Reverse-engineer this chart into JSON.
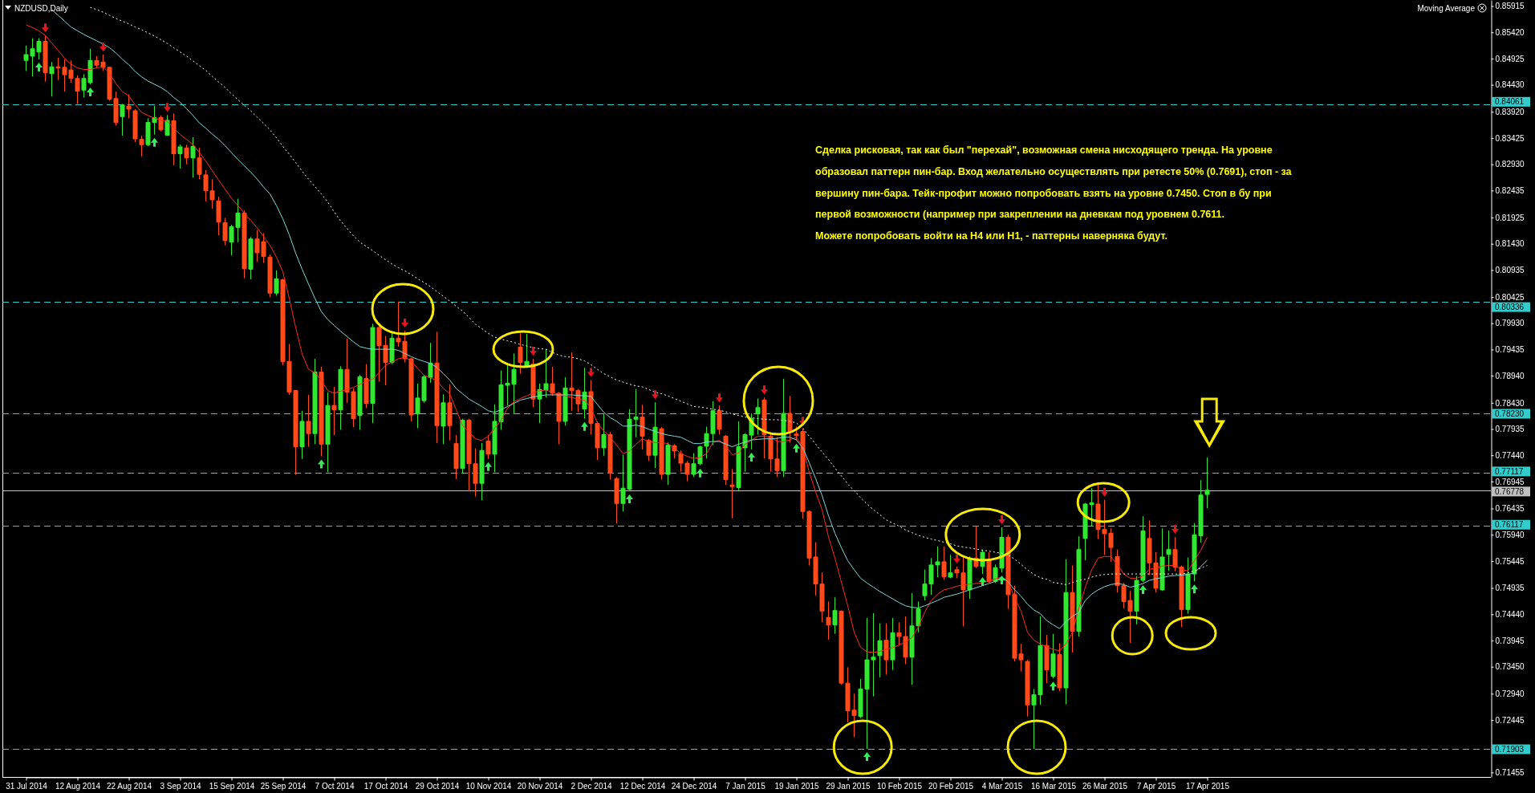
{
  "chart_data": {
    "type": "candlestick",
    "title": "NZDUSD,Daily",
    "categories": [
      "31 Jul 2014",
      null,
      null,
      null,
      null,
      null,
      null,
      null,
      "12 Aug 2014",
      null,
      null,
      null,
      null,
      null,
      null,
      null,
      "22 Aug 2014",
      null,
      null,
      null,
      null,
      null,
      null,
      null,
      "3 Sep 2014",
      null,
      null,
      null,
      null,
      null,
      null,
      null,
      "15 Sep 2014",
      null,
      null,
      null,
      null,
      null,
      null,
      null,
      "25 Sep 2014",
      null,
      null,
      null,
      null,
      null,
      null,
      null,
      "7 Oct 2014",
      null,
      null,
      null,
      null,
      null,
      null,
      null,
      "17 Oct 2014",
      null,
      null,
      null,
      null,
      null,
      null,
      null,
      "29 Oct 2014",
      null,
      null,
      null,
      null,
      null,
      null,
      null,
      "10 Nov 2014",
      null,
      null,
      null,
      null,
      null,
      null,
      null,
      "20 Nov 2014",
      null,
      null,
      null,
      null,
      null,
      null,
      null,
      "2 Dec 2014",
      null,
      null,
      null,
      null,
      null,
      null,
      null,
      "12 Dec 2014",
      null,
      null,
      null,
      null,
      null,
      null,
      null,
      "24 Dec 2014",
      null,
      null,
      null,
      null,
      null,
      null,
      null,
      "7 Jan 2015",
      null,
      null,
      null,
      null,
      null,
      null,
      null,
      "19 Jan 2015",
      null,
      null,
      null,
      null,
      null,
      null,
      null,
      "29 Jan 2015",
      null,
      null,
      null,
      null,
      null,
      null,
      null,
      "10 Feb 2015",
      null,
      null,
      null,
      null,
      null,
      null,
      null,
      "20 Feb 2015",
      null,
      null,
      null,
      null,
      null,
      null,
      null,
      "4 Mar 2015",
      null,
      null,
      null,
      null,
      null,
      null,
      null,
      "16 Mar 2015",
      null,
      null,
      null,
      null,
      null,
      null,
      null,
      "26 Mar 2015",
      null,
      null,
      null,
      null,
      null,
      null,
      null,
      "7 Apr 2015",
      null,
      null,
      null,
      null,
      null,
      null,
      null,
      "17 Apr 2015"
    ],
    "ohlc": [
      [
        0.8489,
        0.8517,
        0.8469,
        0.85
      ],
      [
        0.8497,
        0.8531,
        0.8459,
        0.8511
      ],
      [
        0.8505,
        0.8531,
        0.8491,
        0.8525
      ],
      [
        0.8525,
        0.8536,
        0.8449,
        0.8466
      ],
      [
        0.8464,
        0.8486,
        0.8421,
        0.8477
      ],
      [
        0.8477,
        0.8494,
        0.8452,
        0.8475
      ],
      [
        0.8476,
        0.8491,
        0.843,
        0.8462
      ],
      [
        0.8471,
        0.8489,
        0.8447,
        0.8455
      ],
      [
        0.8455,
        0.8461,
        0.8407,
        0.8431
      ],
      [
        0.8433,
        0.8463,
        0.8419,
        0.8455
      ],
      [
        0.8447,
        0.8511,
        0.8444,
        0.8489
      ],
      [
        0.8489,
        0.8497,
        0.8476,
        0.848
      ],
      [
        0.8486,
        0.85,
        0.8469,
        0.8476
      ],
      [
        0.8476,
        0.8477,
        0.8413,
        0.8416
      ],
      [
        0.8417,
        0.843,
        0.8366,
        0.8372
      ],
      [
        0.8383,
        0.8407,
        0.8347,
        0.8405
      ],
      [
        0.8403,
        0.8425,
        0.838,
        0.8397
      ],
      [
        0.8394,
        0.8397,
        0.8335,
        0.8341
      ],
      [
        0.834,
        0.8347,
        0.8308,
        0.833
      ],
      [
        0.833,
        0.838,
        0.8327,
        0.8372
      ],
      [
        0.8372,
        0.8403,
        0.8349,
        0.8381
      ],
      [
        0.8381,
        0.8385,
        0.8355,
        0.8358
      ],
      [
        0.8348,
        0.8386,
        0.8347,
        0.8376
      ],
      [
        0.8375,
        0.8389,
        0.8291,
        0.8313
      ],
      [
        0.8313,
        0.833,
        0.8285,
        0.8326
      ],
      [
        0.8324,
        0.833,
        0.8293,
        0.8305
      ],
      [
        0.8305,
        0.8344,
        0.8268,
        0.8327
      ],
      [
        0.8305,
        0.8324,
        0.8265,
        0.8274
      ],
      [
        0.8273,
        0.8282,
        0.8223,
        0.8243
      ],
      [
        0.8243,
        0.8265,
        0.8209,
        0.8226
      ],
      [
        0.8224,
        0.8232,
        0.8159,
        0.8184
      ],
      [
        0.8183,
        0.8192,
        0.814,
        0.8149
      ],
      [
        0.8146,
        0.8179,
        0.8121,
        0.8175
      ],
      [
        0.8174,
        0.8228,
        0.8146,
        0.8201
      ],
      [
        0.8201,
        0.8206,
        0.8078,
        0.8096
      ],
      [
        0.8095,
        0.8156,
        0.8076,
        0.8152
      ],
      [
        0.8152,
        0.8169,
        0.8109,
        0.8126
      ],
      [
        0.8147,
        0.8163,
        0.8107,
        0.8119
      ],
      [
        0.8118,
        0.8123,
        0.8042,
        0.805
      ],
      [
        0.805,
        0.8093,
        0.8045,
        0.8077
      ],
      [
        0.8075,
        0.8077,
        0.7914,
        0.7921
      ],
      [
        0.7921,
        0.7954,
        0.7858,
        0.7863
      ],
      [
        0.7866,
        0.7867,
        0.7707,
        0.776
      ],
      [
        0.776,
        0.7828,
        0.7737,
        0.7808
      ],
      [
        0.7808,
        0.7858,
        0.776,
        0.7785
      ],
      [
        0.7785,
        0.7926,
        0.7765,
        0.7901
      ],
      [
        0.7901,
        0.7911,
        0.7742,
        0.7765
      ],
      [
        0.7765,
        0.7863,
        0.7712,
        0.7838
      ],
      [
        0.7838,
        0.7873,
        0.7782,
        0.783
      ],
      [
        0.783,
        0.7912,
        0.7792,
        0.7906
      ],
      [
        0.7906,
        0.7964,
        0.7843,
        0.7863
      ],
      [
        0.7864,
        0.787,
        0.7797,
        0.7813
      ],
      [
        0.7819,
        0.7896,
        0.7792,
        0.7892
      ],
      [
        0.7889,
        0.7916,
        0.7833,
        0.7842
      ],
      [
        0.7842,
        0.7992,
        0.7805,
        0.7985
      ],
      [
        0.7985,
        0.7989,
        0.7883,
        0.7951
      ],
      [
        0.7951,
        0.7969,
        0.7876,
        0.7919
      ],
      [
        0.7919,
        0.7977,
        0.7916,
        0.7965
      ],
      [
        0.7965,
        0.8034,
        0.7949,
        0.7958
      ],
      [
        0.7959,
        0.7979,
        0.7919,
        0.7926
      ],
      [
        0.7926,
        0.7928,
        0.7808,
        0.782
      ],
      [
        0.7822,
        0.7879,
        0.7795,
        0.7852
      ],
      [
        0.7847,
        0.7896,
        0.7843,
        0.7892
      ],
      [
        0.7891,
        0.7956,
        0.7881,
        0.7918
      ],
      [
        0.7918,
        0.7977,
        0.7767,
        0.78
      ],
      [
        0.7799,
        0.7859,
        0.7765,
        0.7843
      ],
      [
        0.7843,
        0.7878,
        0.7772,
        0.78
      ],
      [
        0.7766,
        0.7782,
        0.7699,
        0.7719
      ],
      [
        0.7719,
        0.7813,
        0.7709,
        0.781
      ],
      [
        0.781,
        0.7813,
        0.7676,
        0.7728
      ],
      [
        0.7728,
        0.7757,
        0.7666,
        0.7691
      ],
      [
        0.7691,
        0.7767,
        0.7659,
        0.7753
      ],
      [
        0.7771,
        0.7782,
        0.7737,
        0.7746
      ],
      [
        0.7746,
        0.784,
        0.7712,
        0.7808
      ],
      [
        0.7807,
        0.7904,
        0.7792,
        0.7877
      ],
      [
        0.7876,
        0.7918,
        0.7838,
        0.788
      ],
      [
        0.7878,
        0.7936,
        0.7823,
        0.7906
      ],
      [
        0.7948,
        0.7974,
        0.7898,
        0.7919
      ],
      [
        0.791,
        0.7973,
        0.7909,
        0.7921
      ],
      [
        0.7916,
        0.7926,
        0.7835,
        0.785
      ],
      [
        0.785,
        0.7879,
        0.7805,
        0.7868
      ],
      [
        0.7867,
        0.7944,
        0.7853,
        0.7879
      ],
      [
        0.7879,
        0.7911,
        0.7856,
        0.7861
      ],
      [
        0.7861,
        0.7863,
        0.7765,
        0.7808
      ],
      [
        0.7808,
        0.7891,
        0.78,
        0.7871
      ],
      [
        0.7871,
        0.7938,
        0.7828,
        0.7866
      ],
      [
        0.7866,
        0.7869,
        0.7826,
        0.7841
      ],
      [
        0.7831,
        0.7909,
        0.7813,
        0.7863
      ],
      [
        0.7864,
        0.7886,
        0.7783,
        0.7804
      ],
      [
        0.7804,
        0.7808,
        0.7735,
        0.7758
      ],
      [
        0.7758,
        0.7823,
        0.7743,
        0.7783
      ],
      [
        0.7783,
        0.7788,
        0.7698,
        0.771
      ],
      [
        0.77,
        0.7703,
        0.7615,
        0.7653
      ],
      [
        0.7653,
        0.7745,
        0.7638,
        0.7682
      ],
      [
        0.768,
        0.7831,
        0.7676,
        0.7812
      ],
      [
        0.7812,
        0.7869,
        0.7778,
        0.7816
      ],
      [
        0.7816,
        0.7839,
        0.7755,
        0.778
      ],
      [
        0.7772,
        0.7775,
        0.7733,
        0.7744
      ],
      [
        0.7744,
        0.7844,
        0.772,
        0.7797
      ],
      [
        0.7794,
        0.7797,
        0.7698,
        0.7708
      ],
      [
        0.7708,
        0.7768,
        0.7688,
        0.7763
      ],
      [
        0.7762,
        0.7765,
        0.7738,
        0.7752
      ],
      [
        0.7747,
        0.7753,
        0.7713,
        0.7729
      ],
      [
        0.7729,
        0.7733,
        0.7695,
        0.7708
      ],
      [
        0.7708,
        0.7748,
        0.7703,
        0.7728
      ],
      [
        0.7728,
        0.7762,
        0.7725,
        0.776
      ],
      [
        0.7761,
        0.7798,
        0.7738,
        0.7785
      ],
      [
        0.7785,
        0.7846,
        0.7763,
        0.7828
      ],
      [
        0.7828,
        0.7838,
        0.7783,
        0.7793
      ],
      [
        0.778,
        0.7782,
        0.7688,
        0.7698
      ],
      [
        0.7688,
        0.7718,
        0.7625,
        0.7685
      ],
      [
        0.7683,
        0.7808,
        0.7678,
        0.776
      ],
      [
        0.7758,
        0.7785,
        0.7713,
        0.7783
      ],
      [
        0.7782,
        0.7823,
        0.7755,
        0.7813
      ],
      [
        0.7822,
        0.7851,
        0.7783,
        0.7834
      ],
      [
        0.7848,
        0.7853,
        0.7738,
        0.7783
      ],
      [
        0.778,
        0.7785,
        0.7713,
        0.7737
      ],
      [
        0.7737,
        0.7778,
        0.7703,
        0.7715
      ],
      [
        0.7715,
        0.7888,
        0.7703,
        0.7823
      ],
      [
        0.7823,
        0.7856,
        0.7768,
        0.7789
      ],
      [
        0.7784,
        0.7798,
        0.7772,
        0.7781
      ],
      [
        0.7789,
        0.7794,
        0.7624,
        0.7638
      ],
      [
        0.7638,
        0.764,
        0.7536,
        0.755
      ],
      [
        0.7552,
        0.758,
        0.7479,
        0.7501
      ],
      [
        0.7501,
        0.7523,
        0.7429,
        0.745
      ],
      [
        0.7438,
        0.7468,
        0.7396,
        0.7424
      ],
      [
        0.7424,
        0.7476,
        0.7407,
        0.7451
      ],
      [
        0.745,
        0.7451,
        0.7311,
        0.7314
      ],
      [
        0.7314,
        0.7344,
        0.724,
        0.7262
      ],
      [
        0.7263,
        0.7294,
        0.7212,
        0.7253
      ],
      [
        0.7251,
        0.7322,
        0.7248,
        0.7303
      ],
      [
        0.7303,
        0.7437,
        0.719,
        0.7358
      ],
      [
        0.7358,
        0.7446,
        0.7289,
        0.7363
      ],
      [
        0.7366,
        0.7427,
        0.7325,
        0.7394
      ],
      [
        0.7395,
        0.7427,
        0.733,
        0.7358
      ],
      [
        0.7358,
        0.7437,
        0.7339,
        0.7409
      ],
      [
        0.7409,
        0.7429,
        0.7385,
        0.7402
      ],
      [
        0.7402,
        0.744,
        0.735,
        0.7363
      ],
      [
        0.7363,
        0.7484,
        0.7311,
        0.7422
      ],
      [
        0.7422,
        0.7468,
        0.741,
        0.7454
      ],
      [
        0.7479,
        0.7528,
        0.747,
        0.7501
      ],
      [
        0.7501,
        0.755,
        0.7481,
        0.7537
      ],
      [
        0.7537,
        0.7572,
        0.7514,
        0.7543
      ],
      [
        0.7543,
        0.7572,
        0.7509,
        0.7515
      ],
      [
        0.7514,
        0.7556,
        0.7512,
        0.7522
      ],
      [
        0.7528,
        0.7534,
        0.7512,
        0.7522
      ],
      [
        0.7522,
        0.7553,
        0.7421,
        0.749
      ],
      [
        0.749,
        0.7553,
        0.7473,
        0.755
      ],
      [
        0.755,
        0.761,
        0.7531,
        0.7534
      ],
      [
        0.7534,
        0.7566,
        0.752,
        0.7561
      ],
      [
        0.7547,
        0.7561,
        0.7503,
        0.7506
      ],
      [
        0.7506,
        0.7538,
        0.7503,
        0.7532
      ],
      [
        0.7531,
        0.7608,
        0.7523,
        0.7589
      ],
      [
        0.7589,
        0.7594,
        0.7454,
        0.7481
      ],
      [
        0.7481,
        0.7498,
        0.7355,
        0.7361
      ],
      [
        0.7369,
        0.7388,
        0.7336,
        0.7358
      ],
      [
        0.7355,
        0.7358,
        0.7251,
        0.7273
      ],
      [
        0.7273,
        0.7303,
        0.719,
        0.7292
      ],
      [
        0.7292,
        0.744,
        0.7273,
        0.7385
      ],
      [
        0.7385,
        0.7405,
        0.7314,
        0.7339
      ],
      [
        0.7327,
        0.7407,
        0.7323,
        0.7369
      ],
      [
        0.7368,
        0.7389,
        0.7299,
        0.7305
      ],
      [
        0.7305,
        0.7548,
        0.7274,
        0.7485
      ],
      [
        0.7485,
        0.7536,
        0.7372,
        0.7412
      ],
      [
        0.7412,
        0.7591,
        0.7402,
        0.7566
      ],
      [
        0.7587,
        0.7654,
        0.7546,
        0.7652
      ],
      [
        0.7651,
        0.7682,
        0.7611,
        0.7654
      ],
      [
        0.7652,
        0.7689,
        0.7586,
        0.7604
      ],
      [
        0.7604,
        0.766,
        0.7556,
        0.7596
      ],
      [
        0.7597,
        0.7606,
        0.7543,
        0.757
      ],
      [
        0.7553,
        0.7566,
        0.7485,
        0.7498
      ],
      [
        0.7498,
        0.7503,
        0.7455,
        0.7468
      ],
      [
        0.747,
        0.7488,
        0.739,
        0.745
      ],
      [
        0.745,
        0.7516,
        0.7425,
        0.7508
      ],
      [
        0.7508,
        0.7629,
        0.7505,
        0.7601
      ],
      [
        0.7587,
        0.7621,
        0.7518,
        0.7541
      ],
      [
        0.7541,
        0.7561,
        0.7485,
        0.7493
      ],
      [
        0.749,
        0.7606,
        0.7488,
        0.7552
      ],
      [
        0.7557,
        0.7602,
        0.7526,
        0.7566
      ],
      [
        0.7566,
        0.759,
        0.7525,
        0.7533
      ],
      [
        0.7533,
        0.7536,
        0.742,
        0.7453
      ],
      [
        0.7453,
        0.7551,
        0.7445,
        0.752
      ],
      [
        0.752,
        0.7616,
        0.7506,
        0.7594
      ],
      [
        0.7592,
        0.7697,
        0.7579,
        0.7669
      ],
      [
        0.767,
        0.774,
        0.7644,
        0.7678
      ]
    ],
    "colors": [
      "#33e633",
      "#33e633",
      "#33e633",
      "#ff4a1c",
      "#33e633",
      "#ff4a1c",
      "#ff4a1c",
      "#ff4a1c",
      "#ff4a1c",
      "#33e633",
      "#33e633",
      "#ff4a1c",
      "#ff4a1c",
      "#ff4a1c",
      "#ff4a1c",
      "#33e633",
      "#ff4a1c",
      "#ff4a1c",
      "#ff4a1c",
      "#33e633",
      "#33e633",
      "#ff4a1c",
      "#33e633",
      "#ff4a1c",
      "#33e633",
      "#ff4a1c",
      "#33e633",
      "#ff4a1c",
      "#ff4a1c",
      "#ff4a1c",
      "#ff4a1c",
      "#ff4a1c",
      "#33e633",
      "#33e633",
      "#ff4a1c",
      "#33e633",
      "#ff4a1c",
      "#ff4a1c",
      "#ff4a1c",
      "#33e633",
      "#ff4a1c",
      "#ff4a1c",
      "#ff4a1c",
      "#33e633",
      "#ff4a1c",
      "#33e633",
      "#ff4a1c",
      "#33e633",
      "#ff4a1c",
      "#33e633",
      "#ff4a1c",
      "#ff4a1c",
      "#33e633",
      "#ff4a1c",
      "#33e633",
      "#ff4a1c",
      "#ff4a1c",
      "#33e633",
      "#ff4a1c",
      "#ff4a1c",
      "#ff4a1c",
      "#33e633",
      "#33e633",
      "#33e633",
      "#ff4a1c",
      "#33e633",
      "#ff4a1c",
      "#ff4a1c",
      "#33e633",
      "#ff4a1c",
      "#ff4a1c",
      "#33e633",
      "#ff4a1c",
      "#33e633",
      "#33e633",
      "#33e633",
      "#33e633",
      "#ff4a1c",
      "#33e633",
      "#ff4a1c",
      "#33e633",
      "#33e633",
      "#ff4a1c",
      "#ff4a1c",
      "#33e633",
      "#ff4a1c",
      "#ff4a1c",
      "#33e633",
      "#ff4a1c",
      "#ff4a1c",
      "#33e633",
      "#ff4a1c",
      "#ff4a1c",
      "#33e633",
      "#33e633",
      "#33e633",
      "#ff4a1c",
      "#ff4a1c",
      "#33e633",
      "#ff4a1c",
      "#33e633",
      "#ff4a1c",
      "#ff4a1c",
      "#ff4a1c",
      "#33e633",
      "#33e633",
      "#33e633",
      "#33e633",
      "#ff4a1c",
      "#ff4a1c",
      "#ff4a1c",
      "#33e633",
      "#33e633",
      "#33e633",
      "#33e633",
      "#ff4a1c",
      "#ff4a1c",
      "#ff4a1c",
      "#33e633",
      "#ff4a1c",
      "#ff4a1c",
      "#ff4a1c",
      "#ff4a1c",
      "#ff4a1c",
      "#ff4a1c",
      "#ff4a1c",
      "#33e633",
      "#ff4a1c",
      "#ff4a1c",
      "#ff4a1c",
      "#33e633",
      "#33e633",
      "#33e633",
      "#33e633",
      "#ff4a1c",
      "#33e633",
      "#ff4a1c",
      "#ff4a1c",
      "#33e633",
      "#33e633",
      "#33e633",
      "#33e633",
      "#33e633",
      "#ff4a1c",
      "#33e633",
      "#ff4a1c",
      "#ff4a1c",
      "#33e633",
      "#ff4a1c",
      "#33e633",
      "#ff4a1c",
      "#33e633",
      "#33e633",
      "#ff4a1c",
      "#ff4a1c",
      "#ff4a1c",
      "#ff4a1c",
      "#33e633",
      "#33e633",
      "#ff4a1c",
      "#33e633",
      "#ff4a1c",
      "#33e633",
      "#ff4a1c",
      "#33e633",
      "#33e633",
      "#33e633",
      "#ff4a1c",
      "#ff4a1c",
      "#ff4a1c",
      "#ff4a1c",
      "#ff4a1c",
      "#ff4a1c",
      "#33e633",
      "#33e633",
      "#ff4a1c",
      "#ff4a1c",
      "#33e633",
      "#33e633",
      "#ff4a1c",
      "#ff4a1c",
      "#33e633",
      "#33e633",
      "#33e633",
      "#33e633"
    ],
    "series": [
      {
        "type": "line",
        "color": "#ff2a2a",
        "line_style": "solid",
        "values": [
          0.8556,
          0.8551,
          0.8545,
          0.8536,
          0.8522,
          0.8508,
          0.8493,
          0.8482,
          0.8475,
          0.8472,
          0.8472,
          0.8475,
          0.8477,
          0.8465,
          0.8445,
          0.843,
          0.8422,
          0.8405,
          0.8391,
          0.8385,
          0.838,
          0.8377,
          0.8374,
          0.8362,
          0.8349,
          0.834,
          0.833,
          0.8315,
          0.8299,
          0.8281,
          0.8263,
          0.8246,
          0.8229,
          0.8215,
          0.8201,
          0.8187,
          0.8173,
          0.8157,
          0.814,
          0.8118,
          0.809,
          0.804,
          0.7985,
          0.7935,
          0.7906,
          0.79,
          0.7885,
          0.7866,
          0.7861,
          0.7865,
          0.7868,
          0.7872,
          0.7878,
          0.7883,
          0.7888,
          0.79,
          0.7914,
          0.792,
          0.7926,
          0.7929,
          0.7922,
          0.7908,
          0.7895,
          0.789,
          0.7885,
          0.787,
          0.786,
          0.783,
          0.78,
          0.7788,
          0.7775,
          0.7772,
          0.778,
          0.7795,
          0.781,
          0.7833,
          0.7845,
          0.7851,
          0.7856,
          0.7862,
          0.7866,
          0.7867,
          0.7863,
          0.7858,
          0.7856,
          0.7853,
          0.785,
          0.7848,
          0.7833,
          0.7805,
          0.779,
          0.7778,
          0.7763,
          0.7747,
          0.7752,
          0.7765,
          0.7775,
          0.777,
          0.7768,
          0.7768,
          0.7766,
          0.7758,
          0.7747,
          0.7742,
          0.7738,
          0.774,
          0.7747,
          0.7768,
          0.7772,
          0.7762,
          0.7745,
          0.7748,
          0.7765,
          0.7772,
          0.778,
          0.778,
          0.7778,
          0.777,
          0.777,
          0.7773,
          0.7778,
          0.776,
          0.7712,
          0.7675,
          0.7641,
          0.759,
          0.755,
          0.7505,
          0.746,
          0.741,
          0.7382,
          0.7373,
          0.7372,
          0.7374,
          0.7378,
          0.7381,
          0.7386,
          0.7392,
          0.74,
          0.742,
          0.7448,
          0.747,
          0.7482,
          0.749,
          0.7493,
          0.7497,
          0.7499,
          0.7501,
          0.7502,
          0.7503,
          0.7507,
          0.7511,
          0.7514,
          0.7506,
          0.7475,
          0.745,
          0.741,
          0.7395,
          0.7388,
          0.7382,
          0.7378,
          0.7375,
          0.7388,
          0.741,
          0.7455,
          0.7495,
          0.7528,
          0.755,
          0.7553,
          0.7553,
          0.7538,
          0.752,
          0.7512,
          0.7512,
          0.7516,
          0.7529,
          0.7531,
          0.7535,
          0.7536,
          0.7536,
          0.7528,
          0.7526,
          0.7545,
          0.7565,
          0.7589
        ]
      },
      {
        "type": "line",
        "color": "#7fd8d8",
        "line_style": "solid",
        "values": [
          null,
          null,
          null,
          null,
          0.8585,
          0.8574,
          0.8563,
          0.8552,
          0.8545,
          0.8538,
          0.8532,
          0.8526,
          0.852,
          0.8513,
          0.8503,
          0.8491,
          0.8481,
          0.8468,
          0.8458,
          0.845,
          0.8444,
          0.8438,
          0.843,
          0.8419,
          0.841,
          0.8398,
          0.8385,
          0.8371,
          0.8361,
          0.835,
          0.834,
          0.8328,
          0.8315,
          0.8302,
          0.829,
          0.8278,
          0.8265,
          0.825,
          0.8237,
          0.8215,
          0.819,
          0.816,
          0.8125,
          0.8095,
          0.8067,
          0.804,
          0.8015,
          0.8,
          0.7989,
          0.7978,
          0.7968,
          0.7958,
          0.7949,
          0.7946,
          0.7944,
          0.7944,
          0.7944,
          0.7944,
          0.7942,
          0.7936,
          0.793,
          0.7925,
          0.7921,
          0.7917,
          0.791,
          0.7898,
          0.7886,
          0.787,
          0.786,
          0.785,
          0.7843,
          0.7836,
          0.7828,
          0.7825,
          0.783,
          0.7836,
          0.7842,
          0.7848,
          0.7851,
          0.7854,
          0.7856,
          0.7858,
          0.7858,
          0.7858,
          0.7858,
          0.7858,
          0.7857,
          0.7856,
          0.7855,
          0.784,
          0.7825,
          0.7815,
          0.7808,
          0.7799,
          0.7799,
          0.7801,
          0.7798,
          0.7793,
          0.7789,
          0.7785,
          0.7782,
          0.778,
          0.7778,
          0.7772,
          0.7766,
          0.7766,
          0.7769,
          0.777,
          0.777,
          0.7765,
          0.776,
          0.7765,
          0.7769,
          0.7773,
          0.7774,
          0.7775,
          0.7775,
          0.7776,
          0.7778,
          0.7778,
          0.7773,
          0.7758,
          0.773,
          0.77,
          0.7668,
          0.763,
          0.7597,
          0.757,
          0.7545,
          0.7528,
          0.7512,
          0.7503,
          0.7495,
          0.7487,
          0.748,
          0.7473,
          0.7466,
          0.746,
          0.7457,
          0.7456,
          0.746,
          0.7465,
          0.747,
          0.7476,
          0.7479,
          0.7482,
          0.7486,
          0.749,
          0.7494,
          0.7498,
          0.7502,
          0.7506,
          0.7514,
          0.7505,
          0.749,
          0.7478,
          0.7463,
          0.7452,
          0.7445,
          0.7432,
          0.7424,
          0.7417,
          0.743,
          0.744,
          0.7447,
          0.747,
          0.7482,
          0.749,
          0.7496,
          0.75,
          0.7502,
          0.75,
          0.7495,
          0.7498,
          0.7502,
          0.7508,
          0.7511,
          0.7513,
          0.7516,
          0.7517,
          0.7518,
          0.7519,
          0.7522,
          0.7534,
          0.7546
        ]
      },
      {
        "type": "line",
        "color": "#ffffff",
        "line_style": "dotted",
        "values": [
          null,
          null,
          null,
          null,
          null,
          null,
          null,
          null,
          null,
          null,
          0.8589,
          0.8585,
          0.858,
          0.8574,
          0.8568,
          0.8563,
          0.8558,
          0.8552,
          0.8547,
          0.8541,
          0.8535,
          0.8528,
          0.8521,
          0.8513,
          0.8505,
          0.8497,
          0.8488,
          0.8479,
          0.847,
          0.8459,
          0.8448,
          0.8438,
          0.8426,
          0.8415,
          0.8404,
          0.8394,
          0.8382,
          0.837,
          0.8358,
          0.8343,
          0.8327,
          0.8312,
          0.8296,
          0.828,
          0.8265,
          0.8251,
          0.8237,
          0.8222,
          0.8203,
          0.8186,
          0.8172,
          0.8158,
          0.8146,
          0.8138,
          0.813,
          0.8121,
          0.8113,
          0.8105,
          0.8098,
          0.8092,
          0.8085,
          0.8077,
          0.807,
          0.8062,
          0.8053,
          0.8044,
          0.8035,
          0.8025,
          0.8016,
          0.8004,
          0.7991,
          0.7983,
          0.7974,
          0.7967,
          0.7963,
          0.796,
          0.7957,
          0.7953,
          0.795,
          0.7947,
          0.7945,
          0.7944,
          0.7938,
          0.7933,
          0.793,
          0.7929,
          0.7926,
          0.7922,
          0.7915,
          0.7906,
          0.7898,
          0.7892,
          0.7886,
          0.7882,
          0.7878,
          0.7875,
          0.7873,
          0.7868,
          0.7863,
          0.786,
          0.7856,
          0.7851,
          0.7846,
          0.7841,
          0.7836,
          0.7835,
          0.7833,
          0.7831,
          0.7829,
          0.7826,
          0.7822,
          0.7819,
          0.7816,
          0.7815,
          0.7813,
          0.7812,
          0.7811,
          0.7811,
          0.781,
          0.7808,
          0.7805,
          0.7795,
          0.778,
          0.7765,
          0.775,
          0.7736,
          0.772,
          0.7705,
          0.769,
          0.7677,
          0.7664,
          0.7652,
          0.7641,
          0.7632,
          0.7622,
          0.7616,
          0.761,
          0.7603,
          0.7598,
          0.7593,
          0.7589,
          0.7586,
          0.7583,
          0.758,
          0.7577,
          0.7573,
          0.7571,
          0.7569,
          0.7567,
          0.7565,
          0.7563,
          0.7561,
          0.7559,
          0.7556,
          0.7548,
          0.7538,
          0.7528,
          0.7519,
          0.7513,
          0.751,
          0.7504,
          0.7502,
          0.75,
          0.7504,
          0.7508,
          0.751,
          0.7514,
          0.7517,
          0.7519,
          0.752,
          0.752,
          0.752,
          0.752,
          0.752,
          0.752,
          0.752,
          0.752,
          0.752,
          0.752,
          0.752,
          0.752,
          0.7522,
          0.7526,
          0.7531,
          0.7536
        ]
      }
    ],
    "ylim": [
      0.7137,
      0.8603
    ],
    "yticks": [
      {
        "value": 0.85915,
        "label": "0.85915"
      },
      {
        "value": 0.8542,
        "label": "0.85420"
      },
      {
        "value": 0.84925,
        "label": "0.84925"
      },
      {
        "value": 0.8443,
        "label": "0.84430"
      },
      {
        "value": 0.8392,
        "label": "0.83920"
      },
      {
        "value": 0.83425,
        "label": "0.83425"
      },
      {
        "value": 0.8293,
        "label": "0.82930"
      },
      {
        "value": 0.82435,
        "label": "0.82435"
      },
      {
        "value": 0.81925,
        "label": "0.81925"
      },
      {
        "value": 0.8143,
        "label": "0.81430"
      },
      {
        "value": 0.80935,
        "label": "0.80935"
      },
      {
        "value": 0.80425,
        "label": "0.80425"
      },
      {
        "value": 0.7993,
        "label": "0.79930"
      },
      {
        "value": 0.79435,
        "label": "0.79435"
      },
      {
        "value": 0.7894,
        "label": "0.78940"
      },
      {
        "value": 0.7843,
        "label": "0.78430"
      },
      {
        "value": 0.77935,
        "label": "0.77935"
      },
      {
        "value": 0.7744,
        "label": "0.77440"
      },
      {
        "value": 0.76945,
        "label": "0.76945"
      },
      {
        "value": 0.76435,
        "label": "0.76435"
      },
      {
        "value": 0.7594,
        "label": "0.75940"
      },
      {
        "value": 0.75445,
        "label": "0.75445"
      },
      {
        "value": 0.74935,
        "label": "0.74935"
      },
      {
        "value": 0.7444,
        "label": "0.74440"
      },
      {
        "value": 0.73945,
        "label": "0.73945"
      },
      {
        "value": 0.7345,
        "label": "0.73450"
      },
      {
        "value": 0.7294,
        "label": "0.72940"
      },
      {
        "value": 0.72445,
        "label": "0.72445"
      },
      {
        "value": 0.71455,
        "label": "0.71455"
      }
    ],
    "ref_lines": [
      {
        "axis": "y",
        "value": 0.84061,
        "label": "0.84061",
        "color": "#33cccc",
        "line_style": "dashed"
      },
      {
        "axis": "y",
        "value": 0.80336,
        "label": "0.80336",
        "color": "#33cccc",
        "line_style": "dashed"
      },
      {
        "axis": "y",
        "value": 0.7823,
        "label": "0.78230",
        "color": "#33cccc",
        "line_style": "dashed"
      },
      {
        "axis": "y",
        "value": 0.77117,
        "label": "0.77117",
        "color": "#33cccc",
        "line_style": "dashed"
      },
      {
        "axis": "y",
        "value": 0.76778,
        "label": "0.76778",
        "color": "#c0c0c0",
        "line_style": "solid"
      },
      {
        "axis": "y",
        "value": 0.76117,
        "label": "0.76117",
        "color": "#33cccc",
        "line_style": "dashed"
      },
      {
        "axis": "y",
        "value": 0.71903,
        "label": "0.71903",
        "color": "#33cccc",
        "line_style": "dashed"
      }
    ],
    "annotations": [
      "Moving Average",
      "Сделка рисковая, так как был \"перехай\", возможная смена нисходящего тренда. На уровне\nобразовал паттерн пин-бар. Вход желательно осуществлять при ретесте 50% (0.7691), стоп - за\nвершину пин-бара. Тейк-профит можно попробовать взять на уровне 0.7450. Стоп в бу при\nпервой возможности (например при закреплении на дневкам под уровнем 0.7611.\nМожете попробовать войти на H4 или H1, - паттерны наверняка будут."
    ]
  }
}
